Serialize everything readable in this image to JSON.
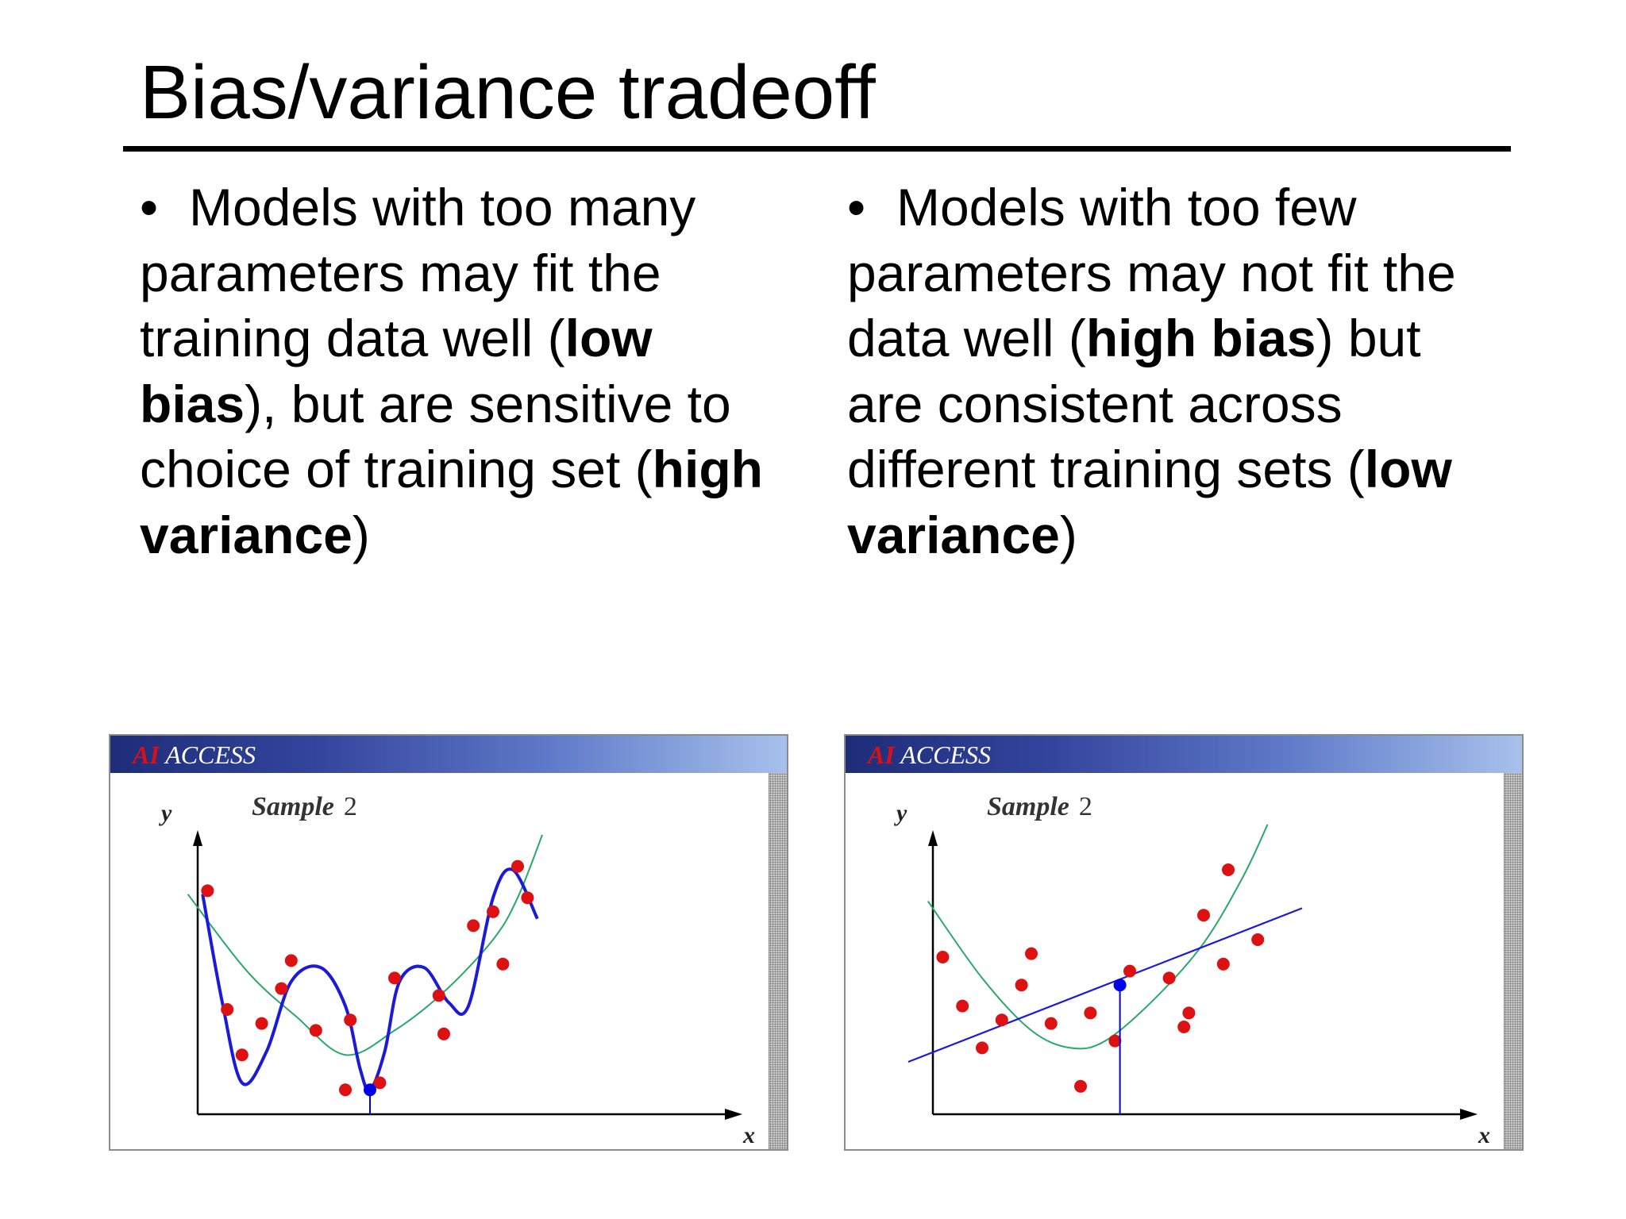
{
  "slide": {
    "title": "Bias/variance tradeoff",
    "bullet_marker": "•",
    "left_bullet": [
      [
        {
          "t": "Models with too many",
          "b": false
        }
      ],
      [
        {
          "t": "parameters may fit the",
          "b": false
        }
      ],
      [
        {
          "t": "training data well (",
          "b": false
        },
        {
          "t": "low",
          "b": true
        }
      ],
      [
        {
          "t": "bias",
          "b": true
        },
        {
          "t": "), but are sensitive to",
          "b": false
        }
      ],
      [
        {
          "t": "choice of training set (",
          "b": false
        },
        {
          "t": "high",
          "b": true
        }
      ],
      [
        {
          "t": "variance",
          "b": true
        },
        {
          "t": ")",
          "b": false
        }
      ]
    ],
    "right_bullet": [
      [
        {
          "t": "Models with too few",
          "b": false
        }
      ],
      [
        {
          "t": "parameters may not fit the",
          "b": false
        }
      ],
      [
        {
          "t": "data well (",
          "b": false
        },
        {
          "t": "high bias",
          "b": true
        },
        {
          "t": ") but",
          "b": false
        }
      ],
      [
        {
          "t": "are consistent across",
          "b": false
        }
      ],
      [
        {
          "t": "different training sets (",
          "b": false
        },
        {
          "t": "low",
          "b": true
        }
      ],
      [
        {
          "t": "variance",
          "b": true
        },
        {
          "t": ")",
          "b": false
        }
      ]
    ]
  },
  "panels": [
    {
      "brand_ai": "AI",
      "brand_access": "ACCESS",
      "label_sample": "Sample",
      "label_num": "2",
      "y_label": "y",
      "x_label": "x"
    },
    {
      "brand_ai": "AI",
      "brand_access": "ACCESS",
      "label_sample": "Sample",
      "label_num": "2",
      "y_label": "y",
      "x_label": "x"
    }
  ],
  "colors": {
    "points": "#dd1111",
    "fit_curve": "#1a1ad8",
    "true_curve": "#2aa86a",
    "axis": "#000000",
    "highlight": "#0000ee"
  },
  "chart_data": [
    {
      "type": "scatter",
      "title": "Sample 2",
      "xlabel": "x",
      "ylabel": "y",
      "xlim": [
        0,
        10
      ],
      "ylim": [
        0,
        10
      ],
      "grid": false,
      "points": [
        [
          0.2,
          6.4
        ],
        [
          0.6,
          3.0
        ],
        [
          0.9,
          1.7
        ],
        [
          1.3,
          2.6
        ],
        [
          1.7,
          3.6
        ],
        [
          1.9,
          4.4
        ],
        [
          2.4,
          2.4
        ],
        [
          3.0,
          0.7
        ],
        [
          3.1,
          2.7
        ],
        [
          3.7,
          0.9
        ],
        [
          4.0,
          3.9
        ],
        [
          4.9,
          3.4
        ],
        [
          5.0,
          2.3
        ],
        [
          5.6,
          5.4
        ],
        [
          6.0,
          5.8
        ],
        [
          6.2,
          4.3
        ],
        [
          6.5,
          7.1
        ],
        [
          6.7,
          6.2
        ]
      ],
      "true_curve": [
        [
          -0.2,
          6.3
        ],
        [
          1,
          4.1
        ],
        [
          2,
          2.8
        ],
        [
          3,
          1.7
        ],
        [
          4,
          2.4
        ],
        [
          5,
          3.5
        ],
        [
          6,
          5.0
        ],
        [
          6.5,
          6.2
        ],
        [
          7,
          8.0
        ]
      ],
      "fit_curve": [
        [
          0.1,
          6.3
        ],
        [
          0.5,
          3.2
        ],
        [
          0.9,
          0.9
        ],
        [
          1.4,
          1.8
        ],
        [
          1.9,
          3.8
        ],
        [
          2.5,
          4.2
        ],
        [
          3.0,
          3.1
        ],
        [
          3.3,
          1.3
        ],
        [
          3.5,
          0.7
        ],
        [
          3.8,
          1.8
        ],
        [
          4.1,
          3.8
        ],
        [
          4.6,
          4.2
        ],
        [
          5.1,
          3.2
        ],
        [
          5.5,
          3.1
        ],
        [
          6.0,
          6.2
        ],
        [
          6.4,
          7.0
        ],
        [
          6.9,
          5.6
        ]
      ],
      "highlight_point": [
        3.5,
        0.7
      ]
    },
    {
      "type": "scatter",
      "title": "Sample 2",
      "xlabel": "x",
      "ylabel": "y",
      "xlim": [
        0,
        10
      ],
      "ylim": [
        0,
        10
      ],
      "grid": false,
      "points": [
        [
          0.2,
          4.5
        ],
        [
          0.6,
          3.1
        ],
        [
          1.0,
          1.9
        ],
        [
          1.4,
          2.7
        ],
        [
          1.8,
          3.7
        ],
        [
          2.0,
          4.6
        ],
        [
          2.4,
          2.6
        ],
        [
          3.0,
          0.8
        ],
        [
          3.2,
          2.9
        ],
        [
          3.7,
          2.1
        ],
        [
          4.0,
          4.1
        ],
        [
          4.8,
          3.9
        ],
        [
          5.1,
          2.5
        ],
        [
          5.2,
          2.9
        ],
        [
          5.5,
          5.7
        ],
        [
          5.9,
          4.3
        ],
        [
          6.0,
          7.0
        ],
        [
          6.6,
          5.0
        ]
      ],
      "true_curve": [
        [
          -0.1,
          6.1
        ],
        [
          1,
          3.9
        ],
        [
          2,
          2.4
        ],
        [
          2.8,
          1.9
        ],
        [
          3.5,
          2.1
        ],
        [
          4.5,
          3.3
        ],
        [
          5.5,
          4.9
        ],
        [
          6.3,
          6.8
        ],
        [
          6.8,
          8.3
        ]
      ],
      "fit_curve": [
        [
          -0.5,
          1.5
        ],
        [
          7.5,
          5.9
        ]
      ],
      "highlight_point": [
        3.8,
        3.7
      ]
    }
  ]
}
